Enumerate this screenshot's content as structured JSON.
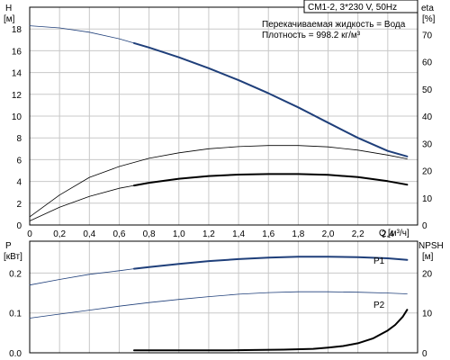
{
  "chart_data": [
    {
      "type": "line",
      "title": "CM1-2, 3*230 V, 50Hz",
      "annotations": [
        "Перекачиваемая жидкость = Вода",
        "Плотность = 998.2 кг/м³"
      ],
      "xlabel": "Q",
      "xunit": "[м³/ч]",
      "ylabel": "H",
      "yunit": "[м]",
      "y2label": "eta",
      "y2unit": "[%]",
      "xlim": [
        0,
        2.6
      ],
      "ylim": [
        0,
        20
      ],
      "y2lim": [
        0,
        80
      ],
      "x_ticks": [
        "0",
        "0,2",
        "0,4",
        "0,6",
        "0,8",
        "1,0",
        "1,2",
        "1,4",
        "1,6",
        "1,8",
        "2,0",
        "2,2",
        "2,4"
      ],
      "y_ticks": [
        "0",
        "2",
        "4",
        "6",
        "8",
        "10",
        "12",
        "14",
        "16",
        "18"
      ],
      "y2_ticks": [
        "0",
        "10",
        "20",
        "30",
        "40",
        "50",
        "60",
        "70"
      ],
      "grid": true,
      "series": [
        {
          "axis": "left",
          "color": "#1f3f7a",
          "x": [
            0,
            0.2,
            0.4,
            0.6,
            0.7,
            0.8,
            1.0,
            1.2,
            1.4,
            1.6,
            1.8,
            2.0,
            2.2,
            2.4,
            2.53
          ],
          "values": [
            18.3,
            18.1,
            17.7,
            17.1,
            16.7,
            16.3,
            15.4,
            14.4,
            13.3,
            12.1,
            10.8,
            9.4,
            8.0,
            6.8,
            6.3
          ],
          "bold_from_x": 0.7
        },
        {
          "axis": "right",
          "color": "#000000",
          "x": [
            0,
            0.2,
            0.4,
            0.6,
            0.7,
            0.8,
            1.0,
            1.2,
            1.4,
            1.6,
            1.8,
            2.0,
            2.2,
            2.4,
            2.53
          ],
          "values": [
            1.5,
            6.5,
            10.5,
            13.5,
            14.5,
            15.5,
            17.0,
            18.0,
            18.5,
            18.7,
            18.7,
            18.4,
            17.6,
            16.1,
            14.8
          ],
          "bold_from_x": 0.7
        },
        {
          "axis": "right",
          "color": "#000000",
          "x": [
            0,
            0.2,
            0.4,
            0.6,
            0.8,
            1.0,
            1.2,
            1.4,
            1.6,
            1.8,
            2.0,
            2.2,
            2.4,
            2.53
          ],
          "values": [
            3.0,
            11.0,
            17.5,
            21.5,
            24.5,
            26.5,
            28.0,
            28.8,
            29.2,
            29.2,
            28.7,
            27.5,
            25.7,
            24.3
          ],
          "bold_from_x": 9
        }
      ]
    },
    {
      "type": "line",
      "ylabel": "P",
      "yunit": "[кВт]",
      "y2label": "NPSH",
      "y2unit": "[м]",
      "xlim": [
        0,
        2.6
      ],
      "ylim": [
        0,
        0.28
      ],
      "y2lim": [
        0,
        28
      ],
      "y_ticks": [
        "0.0",
        "0.1",
        "0.2"
      ],
      "y2_ticks": [
        "0",
        "10",
        "20"
      ],
      "grid": true,
      "series": [
        {
          "name": "P1",
          "axis": "left",
          "color": "#1f3f7a",
          "x": [
            0,
            0.2,
            0.4,
            0.6,
            0.7,
            0.8,
            1.0,
            1.2,
            1.4,
            1.6,
            1.8,
            2.0,
            2.2,
            2.4,
            2.53
          ],
          "values": [
            0.17,
            0.184,
            0.197,
            0.206,
            0.211,
            0.215,
            0.223,
            0.23,
            0.235,
            0.239,
            0.241,
            0.241,
            0.24,
            0.237,
            0.233
          ],
          "bold_from_x": 0.7
        },
        {
          "name": "P2",
          "axis": "left",
          "color": "#1f3f7a",
          "x": [
            0,
            0.2,
            0.4,
            0.6,
            0.8,
            1.0,
            1.2,
            1.4,
            1.6,
            1.8,
            2.0,
            2.2,
            2.4,
            2.53
          ],
          "values": [
            0.087,
            0.097,
            0.107,
            0.117,
            0.126,
            0.134,
            0.141,
            0.147,
            0.151,
            0.153,
            0.153,
            0.152,
            0.15,
            0.148
          ],
          "bold_from_x": 9
        },
        {
          "axis": "right",
          "color": "#000000",
          "x": [
            0.7,
            0.9,
            1.1,
            1.3,
            1.5,
            1.7,
            1.9,
            2.0,
            2.1,
            2.2,
            2.3,
            2.4,
            2.45,
            2.5,
            2.53
          ],
          "values": [
            0.6,
            0.6,
            0.6,
            0.6,
            0.7,
            0.8,
            1.0,
            1.3,
            1.7,
            2.4,
            3.6,
            5.6,
            7.0,
            9.0,
            10.8
          ],
          "bold_from_x": 0.7
        }
      ]
    }
  ]
}
